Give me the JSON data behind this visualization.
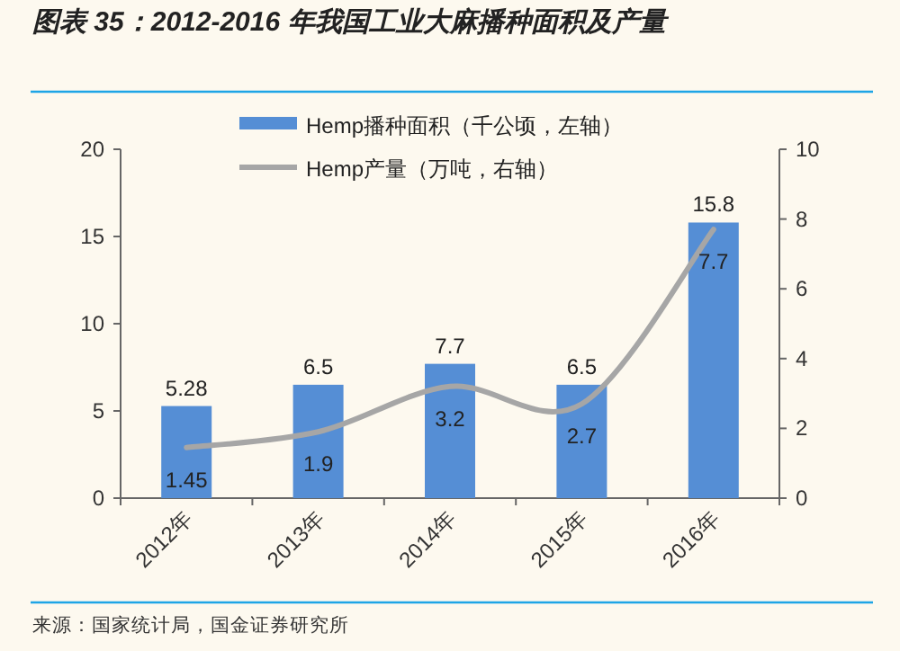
{
  "chart_data": {
    "type": "bar",
    "title": "图表 35：2012-2016 年我国工业大麻播种面积及产量",
    "categories": [
      "2012年",
      "2013年",
      "2014年",
      "2015年",
      "2016年"
    ],
    "series": [
      {
        "name": "Hemp播种面积（千公顷，左轴）",
        "color": "#558ed5",
        "values": [
          5.28,
          6.5,
          7.7,
          6.5,
          15.8
        ]
      },
      {
        "name": "Hemp产量（万吨，右轴）",
        "type": "line",
        "color": "#a6a6a6",
        "axis": "y2",
        "values": [
          1.45,
          1.9,
          3.2,
          2.7,
          7.7
        ]
      }
    ],
    "ylim": [
      0,
      20
    ],
    "yticks": [
      0,
      5,
      10,
      15,
      20
    ],
    "y2lim": [
      0,
      10
    ],
    "y2ticks": [
      0,
      2,
      4,
      6,
      8,
      10
    ],
    "data_labels": true,
    "legend": "top",
    "grid": false,
    "annotations": [
      "来源：国家统计局，国金证券研究所"
    ]
  }
}
